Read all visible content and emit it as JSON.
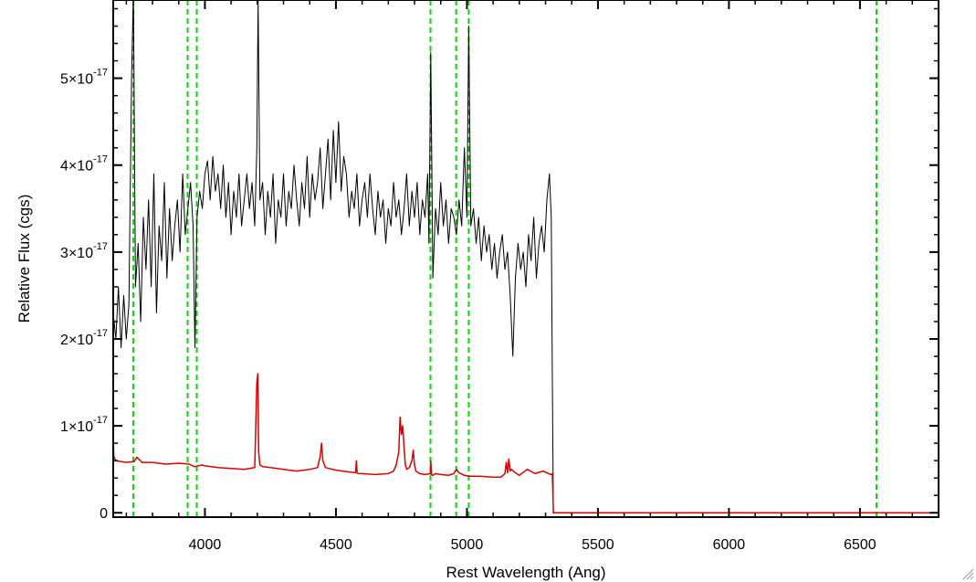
{
  "chart_data": {
    "type": "line",
    "xlabel": "Rest Wavelength (Ang)",
    "ylabel": "Relative Flux (cgs)",
    "xlim": [
      3650,
      6800
    ],
    "ylim": [
      -5e-19,
      5.9e-17
    ],
    "x_ticks": [
      {
        "value": 4000,
        "label": "4000"
      },
      {
        "value": 4500,
        "label": "4500"
      },
      {
        "value": 5000,
        "label": "5000"
      },
      {
        "value": 5500,
        "label": "5500"
      },
      {
        "value": 6000,
        "label": "6000"
      },
      {
        "value": 6500,
        "label": "6500"
      }
    ],
    "y_ticks": [
      {
        "value": 0,
        "mantissa": "0",
        "exponent": ""
      },
      {
        "value": 1e-17,
        "mantissa": "1×10",
        "exponent": "-17"
      },
      {
        "value": 2e-17,
        "mantissa": "2×10",
        "exponent": "-17"
      },
      {
        "value": 3e-17,
        "mantissa": "3×10",
        "exponent": "-17"
      },
      {
        "value": 4e-17,
        "mantissa": "4×10",
        "exponent": "-17"
      },
      {
        "value": 5e-17,
        "mantissa": "5×10",
        "exponent": "-17"
      }
    ],
    "x_minor_step": 100,
    "y_minor_step": 2e-18,
    "grid": false,
    "legend": "none",
    "series": [
      {
        "color": "#000000",
        "x": [
          3650,
          3660,
          3670,
          3680,
          3690,
          3700,
          3710,
          3720,
          3727,
          3735,
          3745,
          3755,
          3765,
          3775,
          3785,
          3795,
          3805,
          3815,
          3825,
          3835,
          3845,
          3855,
          3865,
          3875,
          3885,
          3895,
          3905,
          3915,
          3925,
          3935,
          3945,
          3955,
          3962,
          3970,
          3980,
          3990,
          4000,
          4010,
          4020,
          4030,
          4040,
          4050,
          4060,
          4070,
          4080,
          4090,
          4100,
          4110,
          4120,
          4130,
          4140,
          4150,
          4160,
          4170,
          4180,
          4190,
          4198,
          4203,
          4210,
          4220,
          4230,
          4240,
          4250,
          4260,
          4270,
          4280,
          4290,
          4300,
          4310,
          4320,
          4330,
          4340,
          4350,
          4360,
          4370,
          4380,
          4390,
          4400,
          4410,
          4420,
          4430,
          4440,
          4450,
          4460,
          4470,
          4480,
          4490,
          4500,
          4510,
          4520,
          4530,
          4540,
          4550,
          4560,
          4570,
          4580,
          4590,
          4600,
          4610,
          4620,
          4630,
          4640,
          4650,
          4660,
          4670,
          4680,
          4690,
          4700,
          4710,
          4720,
          4730,
          4740,
          4750,
          4760,
          4770,
          4780,
          4790,
          4800,
          4810,
          4820,
          4830,
          4840,
          4850,
          4855,
          4862,
          4870,
          4880,
          4890,
          4900,
          4910,
          4920,
          4930,
          4940,
          4950,
          4960,
          4970,
          4980,
          4990,
          5000,
          5007,
          5015,
          5025,
          5035,
          5045,
          5055,
          5065,
          5075,
          5085,
          5095,
          5105,
          5115,
          5125,
          5135,
          5145,
          5155,
          5165,
          5175,
          5185,
          5195,
          5205,
          5215,
          5225,
          5235,
          5245,
          5255,
          5265,
          5275,
          5285,
          5295,
          5305,
          5315,
          5322,
          5326,
          5330,
          5340,
          6800
        ],
        "y": [
          2.3e-17,
          2e-17,
          2.6e-17,
          1.9e-17,
          2.5e-17,
          2e-17,
          2.4e-17,
          5e-17,
          6e-17,
          2.6e-17,
          3.1e-17,
          2.2e-17,
          3.4e-17,
          2.8e-17,
          3.6e-17,
          2.6e-17,
          3.9e-17,
          2.3e-17,
          3.3e-17,
          2.9e-17,
          3.8e-17,
          2.7e-17,
          3.5e-17,
          2.9e-17,
          3.3e-17,
          3.6e-17,
          3e-17,
          3.9e-17,
          3.2e-17,
          3.5e-17,
          3.8e-17,
          3.3e-17,
          1.9e-17,
          3.4e-17,
          3.7e-17,
          3.5e-17,
          3.9e-17,
          4.05e-17,
          3.6e-17,
          4.1e-17,
          3.7e-17,
          3.9e-17,
          3.5e-17,
          4e-17,
          3.4e-17,
          3.8e-17,
          3.2e-17,
          3.7e-17,
          3.4e-17,
          3.9e-17,
          3.3e-17,
          3.6e-17,
          3.9e-17,
          3.5e-17,
          3.8e-17,
          3.3e-17,
          4.2e-17,
          5.9e-17,
          3.6e-17,
          3.8e-17,
          3.2e-17,
          3.7e-17,
          3.4e-17,
          3.9e-17,
          3.1e-17,
          3.6e-17,
          3.4e-17,
          3.9e-17,
          3.3e-17,
          3.7e-17,
          3.5e-17,
          4e-17,
          3.6e-17,
          3.3e-17,
          3.8e-17,
          3.5e-17,
          4.1e-17,
          3.4e-17,
          3.9e-17,
          3.6e-17,
          3.8e-17,
          4.2e-17,
          3.5e-17,
          3.9e-17,
          4.3e-17,
          3.6e-17,
          4.4e-17,
          3.8e-17,
          4.5e-17,
          3.7e-17,
          4.1e-17,
          3.9e-17,
          3.4e-17,
          3.7e-17,
          3.5e-17,
          3.9e-17,
          3.3e-17,
          3.6e-17,
          3.8e-17,
          3.4e-17,
          3.9e-17,
          3.5e-17,
          3.2e-17,
          3.7e-17,
          3.4e-17,
          3.6e-17,
          3.1e-17,
          3.5e-17,
          3.3e-17,
          3.8e-17,
          3.4e-17,
          3.6e-17,
          3.2e-17,
          3.5e-17,
          3.9e-17,
          3.3e-17,
          3.7e-17,
          3.4e-17,
          3.8e-17,
          3.2e-17,
          3.6e-17,
          3.4e-17,
          3.9e-17,
          3.1e-17,
          5.3e-17,
          2.7e-17,
          3.5e-17,
          3.2e-17,
          3.8e-17,
          3.3e-17,
          3.6e-17,
          3.1e-17,
          3.5e-17,
          3.4e-17,
          3.2e-17,
          3.6e-17,
          3.3e-17,
          4.2e-17,
          3.4e-17,
          5.6e-17,
          3.3e-17,
          3.5e-17,
          3.1e-17,
          3.4e-17,
          2.9e-17,
          3.3e-17,
          3e-17,
          3.2e-17,
          2.8e-17,
          3.1e-17,
          2.7e-17,
          3e-17,
          3.2e-17,
          2.8e-17,
          3e-17,
          2.5e-17,
          1.8e-17,
          2.7e-17,
          3.1e-17,
          2.8e-17,
          3e-17,
          2.6e-17,
          3.2e-17,
          2.9e-17,
          3.4e-17,
          2.7e-17,
          3.1e-17,
          3.3e-17,
          3e-17,
          3.6e-17,
          3.9e-17,
          3.4e-17,
          1.5e-17,
          0.0,
          0.0,
          0.0
        ]
      },
      {
        "color": "#dd0000",
        "x": [
          3650,
          3652,
          3660,
          3700,
          3730,
          3740,
          3760,
          3800,
          3850,
          3900,
          3940,
          3960,
          3990,
          4000,
          4050,
          4100,
          4150,
          4190,
          4198,
          4202,
          4205,
          4210,
          4220,
          4250,
          4300,
          4350,
          4400,
          4430,
          4440,
          4445,
          4450,
          4460,
          4500,
          4550,
          4575,
          4578,
          4581,
          4585,
          4600,
          4650,
          4700,
          4720,
          4730,
          4740,
          4745,
          4750,
          4755,
          4760,
          4765,
          4770,
          4780,
          4790,
          4795,
          4800,
          4805,
          4820,
          4840,
          4860,
          4862,
          4865,
          4870,
          4880,
          4900,
          4930,
          4950,
          4960,
          4970,
          4990,
          5010,
          5050,
          5100,
          5130,
          5145,
          5150,
          5155,
          5160,
          5165,
          5170,
          5180,
          5200,
          5230,
          5260,
          5290,
          5320,
          5326,
          5330,
          5340,
          6800
        ],
        "y": [
          9e-18,
          6.5e-18,
          6e-18,
          5.8e-18,
          5.9e-18,
          6.4e-18,
          5.8e-18,
          5.8e-18,
          5.6e-18,
          5.7e-18,
          5.6e-18,
          5.3e-18,
          5.5e-18,
          5.4e-18,
          5.2e-18,
          5.1e-18,
          5e-18,
          5.2e-18,
          1.5e-17,
          1.6e-17,
          7e-18,
          5.5e-18,
          5.3e-18,
          5.2e-18,
          5e-18,
          4.8e-18,
          5e-18,
          5.2e-18,
          6.5e-18,
          8e-18,
          6e-18,
          5.2e-18,
          4.9e-18,
          4.7e-18,
          4.6e-18,
          6e-18,
          4.6e-18,
          4.5e-18,
          4.5e-18,
          4.4e-18,
          4.5e-18,
          4.8e-18,
          5.5e-18,
          7e-18,
          1.1e-17,
          9e-18,
          1e-17,
          7.5e-18,
          5.5e-18,
          5e-18,
          5.2e-18,
          6e-18,
          7.2e-18,
          5.5e-18,
          4.8e-18,
          4.5e-18,
          4.4e-18,
          4.5e-18,
          6e-18,
          4.4e-18,
          4.3e-18,
          4.5e-18,
          4.4e-18,
          4.3e-18,
          4.5e-18,
          5e-18,
          4.6e-18,
          4.3e-18,
          4.2e-18,
          4.2e-18,
          4.1e-18,
          4.1e-18,
          4.5e-18,
          5.8e-18,
          4.6e-18,
          6.2e-18,
          4.8e-18,
          5e-18,
          4.7e-18,
          4.3e-18,
          5e-18,
          4.5e-18,
          4.8e-18,
          4.4e-18,
          4.5e-18,
          0.0,
          0.0,
          0.0
        ]
      }
    ],
    "reference_lines": {
      "color": "#00dd00",
      "style": "dashed",
      "x": [
        3727,
        3934,
        3969,
        4861,
        4959,
        5007,
        6563
      ]
    }
  }
}
